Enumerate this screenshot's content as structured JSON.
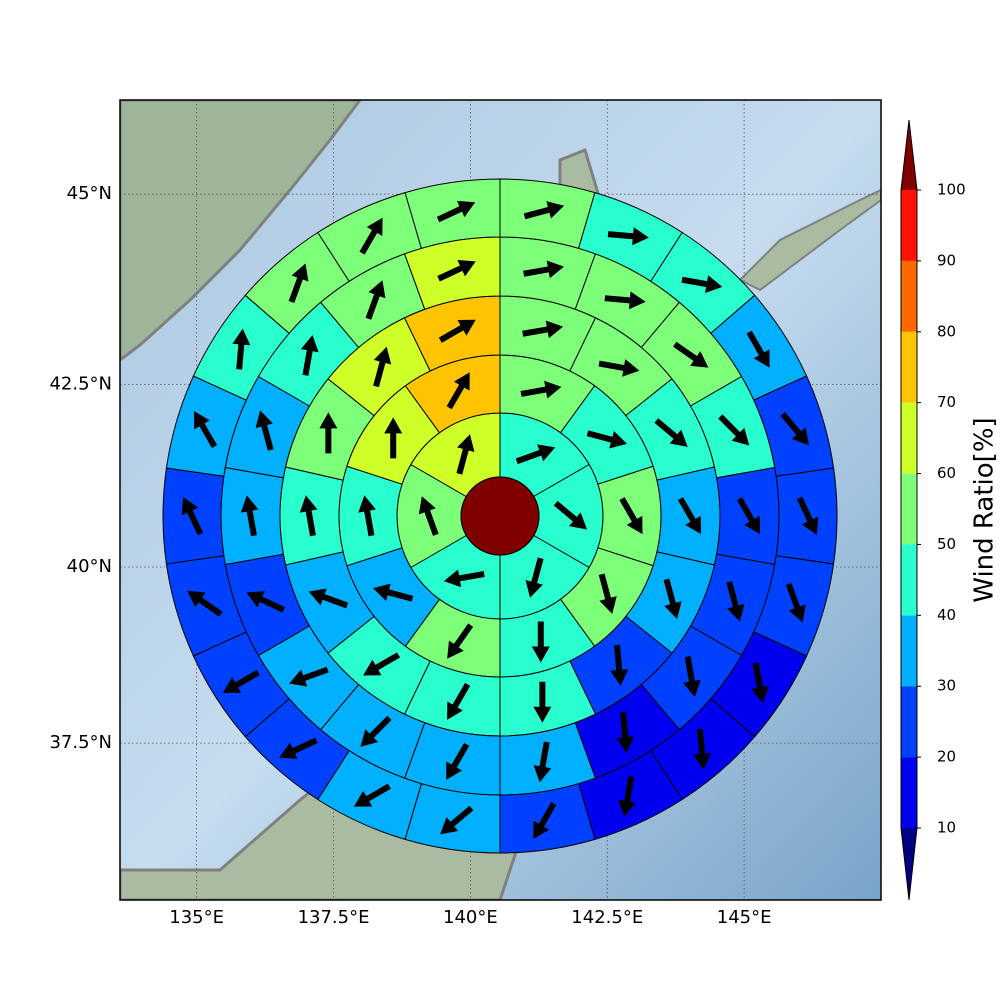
{
  "chart_data": {
    "type": "polar_grid_map",
    "xlim": [
      133.6,
      147.5
    ],
    "ylim": [
      35.2,
      46.2
    ],
    "xticks": [
      {
        "value": 135,
        "label": "135°E"
      },
      {
        "value": 137.5,
        "label": "137.5°E"
      },
      {
        "value": 140,
        "label": "140°E"
      },
      {
        "value": 142.5,
        "label": "142.5°E"
      },
      {
        "value": 145,
        "label": "145°E"
      }
    ],
    "yticks": [
      {
        "value": 37.5,
        "label": "37.5°N"
      },
      {
        "value": 40,
        "label": "40°N"
      },
      {
        "value": 42.5,
        "label": "42.5°N"
      },
      {
        "value": 45,
        "label": "45°N"
      }
    ],
    "grid": true,
    "center_color": "#800000",
    "colorbar": {
      "label": "Wind Ratio[%]",
      "levels": [
        10,
        20,
        30,
        40,
        50,
        60,
        70,
        80,
        90,
        100
      ],
      "colors": [
        "#0000f0",
        "#0040ff",
        "#00b0ff",
        "#29ffce",
        "#7dff7a",
        "#ceff29",
        "#ffc400",
        "#ff6800",
        "#ff1300"
      ],
      "under_color": "#000080",
      "over_color": "#800000"
    },
    "rings": [
      {
        "values": [
          45,
          45,
          45,
          45,
          55,
          65
        ],
        "directions": [
          70,
          130,
          195,
          260,
          340,
          15
        ]
      },
      {
        "values": [
          55,
          45,
          55,
          55,
          45,
          55,
          35,
          45,
          65,
          75
        ],
        "directions": [
          80,
          105,
          150,
          165,
          180,
          215,
          285,
          350,
          0,
          30
        ]
      },
      {
        "values": [
          55,
          55,
          45,
          35,
          35,
          25,
          45,
          45,
          45,
          35,
          45,
          55,
          65,
          75
        ],
        "directions": [
          80,
          100,
          130,
          150,
          165,
          175,
          180,
          210,
          240,
          290,
          350,
          0,
          15,
          60
        ]
      },
      {
        "values": [
          55,
          55,
          55,
          45,
          25,
          25,
          25,
          15,
          35,
          35,
          35,
          35,
          25,
          35,
          35,
          45,
          55,
          65
        ],
        "directions": [
          80,
          95,
          125,
          135,
          150,
          165,
          170,
          175,
          190,
          210,
          225,
          250,
          295,
          350,
          345,
          10,
          20,
          65
        ]
      },
      {
        "values": [
          55,
          45,
          45,
          35,
          25,
          25,
          25,
          15,
          15,
          15,
          25,
          35,
          35,
          25,
          25,
          25,
          25,
          35,
          45,
          55,
          55,
          55
        ],
        "directions": [
          75,
          95,
          100,
          150,
          140,
          155,
          160,
          170,
          175,
          190,
          210,
          230,
          240,
          245,
          240,
          305,
          335,
          330,
          5,
          20,
          30,
          65
        ]
      }
    ]
  }
}
